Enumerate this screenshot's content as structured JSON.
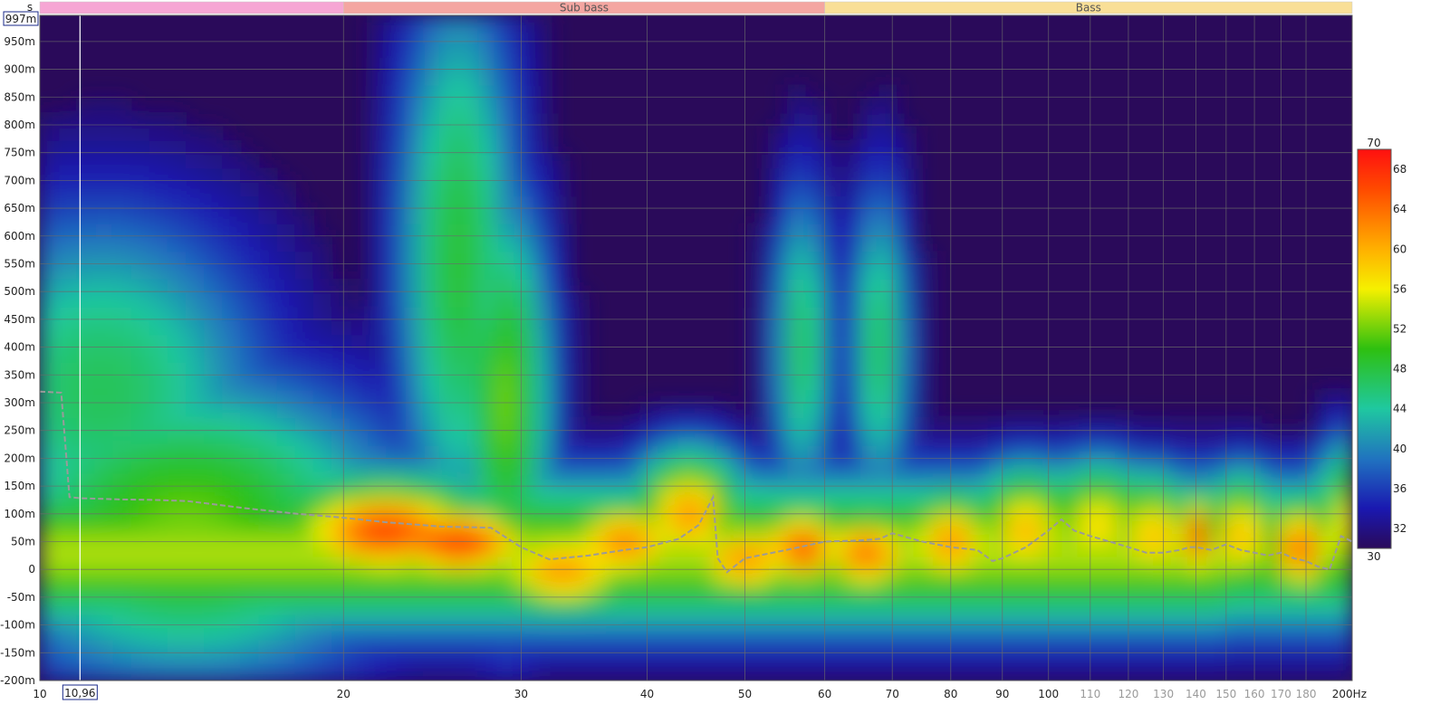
{
  "chart_data": {
    "type": "heatmap",
    "title": "",
    "x_unit": "Hz",
    "y_unit": "s",
    "x_scale": "log",
    "xlim": [
      10,
      200
    ],
    "ylim": [
      -0.2,
      0.997
    ],
    "grid": true,
    "x_ticks": [
      10,
      20,
      30,
      40,
      50,
      60,
      70,
      80,
      90,
      100,
      110,
      120,
      130,
      140,
      150,
      160,
      170,
      180,
      200
    ],
    "x_tick_labels": [
      "10",
      "20",
      "30",
      "40",
      "50",
      "60",
      "70",
      "80",
      "90",
      "100",
      "110",
      "120",
      "130",
      "140",
      "150",
      "160",
      "170",
      "180",
      "200Hz"
    ],
    "x_tick_labels_dimmed": [
      "110",
      "120",
      "130",
      "140",
      "150",
      "160",
      "170",
      "180"
    ],
    "y_ticks": [
      -0.2,
      -0.15,
      -0.1,
      -0.05,
      0,
      0.05,
      0.1,
      0.15,
      0.2,
      0.25,
      0.3,
      0.35,
      0.4,
      0.45,
      0.5,
      0.55,
      0.6,
      0.65,
      0.7,
      0.75,
      0.8,
      0.85,
      0.9,
      0.95
    ],
    "y_tick_labels": [
      "-200m",
      "-150m",
      "-100m",
      "-50m",
      "0",
      "50m",
      "100m",
      "150m",
      "200m",
      "250m",
      "300m",
      "350m",
      "400m",
      "450m",
      "500m",
      "550m",
      "600m",
      "650m",
      "700m",
      "750m",
      "800m",
      "850m",
      "900m",
      "950m"
    ],
    "y_top_label": "997m",
    "cursor": {
      "x_label": "10,96",
      "x_value": 10.96
    },
    "bands": [
      {
        "label": "",
        "from": 10,
        "to": 20,
        "color": "#f6a6d4"
      },
      {
        "label": "Sub bass",
        "from": 20,
        "to": 60,
        "color": "#f4a6a1"
      },
      {
        "label": "Bass",
        "from": 60,
        "to": 200,
        "color": "#f9df97"
      }
    ],
    "colorbar": {
      "min": 30,
      "max": 70,
      "labels": [
        "70",
        "68",
        "64",
        "60",
        "56",
        "52",
        "48",
        "44",
        "40",
        "36",
        "32",
        "30"
      ],
      "values": [
        70,
        68,
        64,
        60,
        56,
        52,
        48,
        44,
        40,
        36,
        32,
        30
      ]
    },
    "peak_time_trace": {
      "description": "",
      "x": [
        10,
        10.5,
        10.7,
        11,
        12,
        13,
        14,
        16,
        18,
        20,
        22,
        25,
        28,
        30,
        32,
        35,
        38,
        40,
        43,
        45,
        46.5,
        47,
        48,
        50,
        55,
        60,
        65,
        68,
        70,
        75,
        80,
        85,
        88,
        90,
        95,
        100,
        103,
        106,
        110,
        115,
        120,
        125,
        130,
        135,
        138,
        140,
        145,
        150,
        155,
        160,
        165,
        170,
        175,
        180,
        185,
        190,
        195,
        200
      ],
      "y": [
        0.32,
        0.318,
        0.13,
        0.128,
        0.126,
        0.125,
        0.123,
        0.11,
        0.1,
        0.093,
        0.085,
        0.077,
        0.075,
        0.04,
        0.018,
        0.025,
        0.035,
        0.04,
        0.055,
        0.08,
        0.13,
        0.02,
        -0.005,
        0.02,
        0.035,
        0.05,
        0.052,
        0.055,
        0.065,
        0.05,
        0.04,
        0.035,
        0.015,
        0.02,
        0.04,
        0.07,
        0.09,
        0.07,
        0.06,
        0.05,
        0.04,
        0.03,
        0.03,
        0.035,
        0.04,
        0.04,
        0.035,
        0.045,
        0.035,
        0.03,
        0.025,
        0.03,
        0.02,
        0.015,
        0.005,
        0.0,
        0.06,
        0.05
      ]
    },
    "hotspots": [
      {
        "f": 11.5,
        "t": 0.32,
        "level": 46,
        "spread_f": 0.11,
        "spread_t": 0.22
      },
      {
        "f": 14,
        "t": 0.08,
        "level": 52,
        "spread_f": 0.14,
        "spread_t": 0.18
      },
      {
        "f": 22,
        "t": 0.07,
        "level": 66,
        "spread_f": 0.08,
        "spread_t": 0.07
      },
      {
        "f": 26,
        "t": 0.05,
        "level": 68,
        "spread_f": 0.06,
        "spread_t": 0.05
      },
      {
        "f": 26,
        "t": 0.55,
        "level": 48,
        "spread_f": 0.04,
        "spread_t": 0.35
      },
      {
        "f": 29,
        "t": 0.3,
        "level": 52,
        "spread_f": 0.03,
        "spread_t": 0.25
      },
      {
        "f": 33,
        "t": 0.0,
        "level": 62,
        "spread_f": 0.06,
        "spread_t": 0.06
      },
      {
        "f": 38,
        "t": 0.05,
        "level": 63,
        "spread_f": 0.05,
        "spread_t": 0.06
      },
      {
        "f": 44,
        "t": 0.1,
        "level": 62,
        "spread_f": 0.04,
        "spread_t": 0.08
      },
      {
        "f": 50,
        "t": 0.02,
        "level": 62,
        "spread_f": 0.05,
        "spread_t": 0.06
      },
      {
        "f": 57,
        "t": 0.04,
        "level": 65,
        "spread_f": 0.04,
        "spread_t": 0.06
      },
      {
        "f": 57,
        "t": 0.4,
        "level": 46,
        "spread_f": 0.02,
        "spread_t": 0.2
      },
      {
        "f": 68,
        "t": 0.4,
        "level": 46,
        "spread_f": 0.02,
        "spread_t": 0.2
      },
      {
        "f": 66,
        "t": 0.03,
        "level": 64,
        "spread_f": 0.04,
        "spread_t": 0.06
      },
      {
        "f": 80,
        "t": 0.05,
        "level": 62,
        "spread_f": 0.04,
        "spread_t": 0.07
      },
      {
        "f": 95,
        "t": 0.07,
        "level": 60,
        "spread_f": 0.04,
        "spread_t": 0.08
      },
      {
        "f": 112,
        "t": 0.08,
        "level": 58,
        "spread_f": 0.04,
        "spread_t": 0.08
      },
      {
        "f": 127,
        "t": 0.06,
        "level": 60,
        "spread_f": 0.03,
        "spread_t": 0.08
      },
      {
        "f": 140,
        "t": 0.06,
        "level": 66,
        "spread_f": 0.02,
        "spread_t": 0.06
      },
      {
        "f": 155,
        "t": 0.06,
        "level": 60,
        "spread_f": 0.03,
        "spread_t": 0.08
      },
      {
        "f": 178,
        "t": 0.04,
        "level": 64,
        "spread_f": 0.03,
        "spread_t": 0.07
      },
      {
        "f": 196,
        "t": 0.08,
        "level": 56,
        "spread_f": 0.02,
        "spread_t": 0.1
      }
    ],
    "base_floor_level": 30
  }
}
